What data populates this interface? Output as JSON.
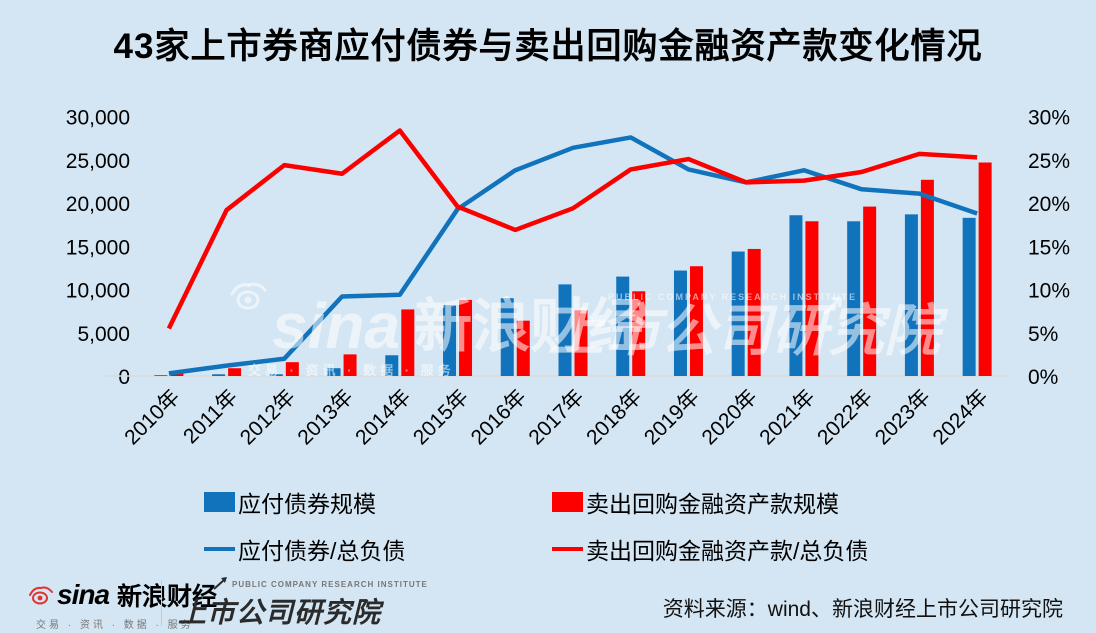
{
  "title": "43家上市券商应付债券与卖出回购金融资产款变化情况",
  "chart_data": {
    "type": "combo-bar-line",
    "categories": [
      "2010年",
      "2011年",
      "2012年",
      "2013年",
      "2014年",
      "2015年",
      "2016年",
      "2017年",
      "2018年",
      "2019年",
      "2020年",
      "2021年",
      "2022年",
      "2023年",
      "2024年"
    ],
    "series": [
      {
        "name": "应付债券规模",
        "type": "bar",
        "axis": "left",
        "color": "#1273bd",
        "values": [
          100,
          200,
          200,
          900,
          2400,
          8200,
          9000,
          10600,
          11500,
          12200,
          14400,
          18600,
          17900,
          18700,
          18300
        ]
      },
      {
        "name": "卖出回购金融资产款规模",
        "type": "bar",
        "axis": "left",
        "color": "#fc0000",
        "values": [
          300,
          900,
          1600,
          2500,
          7700,
          8800,
          6400,
          7600,
          9800,
          12700,
          14700,
          17900,
          19600,
          22700,
          24700
        ]
      },
      {
        "name": "应付债券/总负债",
        "type": "line",
        "axis": "right",
        "color": "#1273bd",
        "values": [
          0.3,
          1.2,
          2.0,
          9.2,
          9.4,
          19.3,
          23.8,
          26.4,
          27.6,
          23.9,
          22.4,
          23.8,
          21.6,
          21.1,
          18.8
        ]
      },
      {
        "name": "卖出回购金融资产款/总负债",
        "type": "line",
        "axis": "right",
        "color": "#fc0000",
        "values": [
          5.5,
          19.2,
          24.4,
          23.4,
          28.4,
          19.6,
          16.9,
          19.4,
          23.9,
          25.1,
          22.4,
          22.6,
          23.6,
          25.7,
          25.3
        ]
      }
    ],
    "left_axis": {
      "min": 0,
      "max": 30000,
      "step": 5000,
      "tick_labels": [
        "0",
        "5,000",
        "10,000",
        "15,000",
        "20,000",
        "25,000",
        "30,000"
      ]
    },
    "right_axis": {
      "min": 0,
      "max": 30,
      "step": 5,
      "tick_labels": [
        "0%",
        "5%",
        "10%",
        "15%",
        "20%",
        "25%",
        "30%"
      ]
    },
    "grid": "off",
    "legend_position": "bottom"
  },
  "watermark": {
    "sina_text": "sina",
    "sina_cn": "新浪财经",
    "tagline": "交易 · 资讯 · 数据 · 服务",
    "pcri_en": "PUBLIC COMPANY RESEARCH INSTITUTE",
    "pcri_cn": "上市公司研究院",
    "arrow": "↗"
  },
  "footer": {
    "sina_logo": "sina",
    "sina_cn": "新浪财经",
    "sina_tagline": "交易 · 资讯 · 数据 · 服务",
    "pcri_en": "PUBLIC COMPANY RESEARCH INSTITUTE",
    "pcri_cn": "上市公司研究院",
    "source": "资料来源：wind、新浪财经上市公司研究院"
  }
}
